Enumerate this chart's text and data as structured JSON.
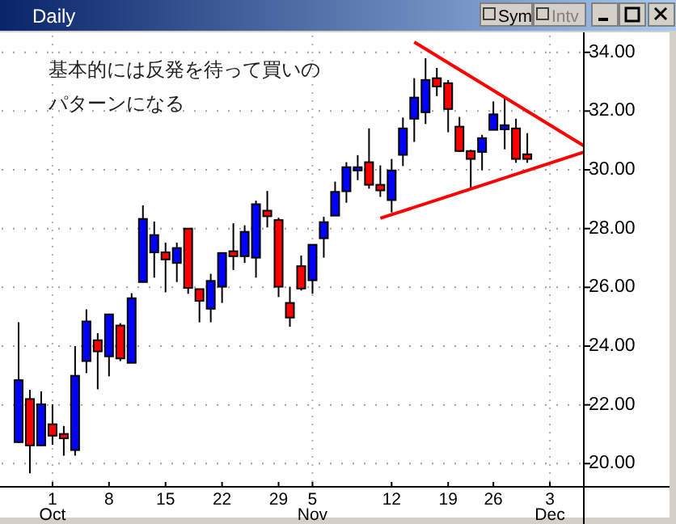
{
  "chart_data": {
    "type": "candlestick",
    "title": "Daily",
    "categories": [
      null,
      null,
      null,
      "1\nOct",
      null,
      null,
      null,
      null,
      "8",
      null,
      null,
      null,
      null,
      "15",
      null,
      null,
      null,
      null,
      "22",
      null,
      null,
      null,
      null,
      "29",
      null,
      null,
      "5\nNov",
      null,
      null,
      null,
      null,
      null,
      null,
      "12",
      null,
      null,
      null,
      null,
      "19",
      null,
      null,
      null,
      "26",
      null,
      null,
      null,
      null,
      "3\nDec",
      null,
      null,
      null
    ],
    "ohlc": [
      [
        20.73,
        24.81,
        20.7,
        22.84
      ],
      [
        22.2,
        22.51,
        19.67,
        20.62
      ],
      [
        20.62,
        22.46,
        20.6,
        22.02
      ],
      [
        21.34,
        22.02,
        20.64,
        20.95
      ],
      [
        21.01,
        21.28,
        20.27,
        20.86
      ],
      [
        20.46,
        24.0,
        20.27,
        22.99
      ],
      [
        23.49,
        25.25,
        23.08,
        24.84
      ],
      [
        24.2,
        24.44,
        22.53,
        23.82
      ],
      [
        23.65,
        25.08,
        22.97,
        25.08
      ],
      [
        24.7,
        24.78,
        23.49,
        23.58
      ],
      [
        23.43,
        25.8,
        23.43,
        25.63
      ],
      [
        26.18,
        28.79,
        26.18,
        28.33
      ],
      [
        27.19,
        28.24,
        26.33,
        27.78
      ],
      [
        27.19,
        27.52,
        25.83,
        26.95
      ],
      [
        26.83,
        27.52,
        26.18,
        27.34
      ],
      [
        28.0,
        28.0,
        25.78,
        25.98
      ],
      [
        25.94,
        25.94,
        24.81,
        25.54
      ],
      [
        25.27,
        26.46,
        24.81,
        26.22
      ],
      [
        26.02,
        27.17,
        25.47,
        27.17
      ],
      [
        27.23,
        28.18,
        26.59,
        27.06
      ],
      [
        27.06,
        28.11,
        26.83,
        27.89
      ],
      [
        27.01,
        28.95,
        26.33,
        28.83
      ],
      [
        28.61,
        29.28,
        28.04,
        28.42
      ],
      [
        28.29,
        28.37,
        25.67,
        26.02
      ],
      [
        25.47,
        26.02,
        24.66,
        24.97
      ],
      [
        26.72,
        27.08,
        25.89,
        25.96
      ],
      [
        26.24,
        27.45,
        25.78,
        27.45
      ],
      [
        27.67,
        28.4,
        27.01,
        28.22
      ],
      [
        28.44,
        29.6,
        28.44,
        29.25
      ],
      [
        29.27,
        30.26,
        28.88,
        30.09
      ],
      [
        29.98,
        30.5,
        29.65,
        30.09
      ],
      [
        30.26,
        31.41,
        29.36,
        29.49
      ],
      [
        29.49,
        30.15,
        29.08,
        29.3
      ],
      [
        28.97,
        30.37,
        28.55,
        29.98
      ],
      [
        30.51,
        31.78,
        30.13,
        31.41
      ],
      [
        31.74,
        33.12,
        30.95,
        32.46
      ],
      [
        31.96,
        33.8,
        31.56,
        33.06
      ],
      [
        33.12,
        33.47,
        32.51,
        32.84
      ],
      [
        32.95,
        33.06,
        31.28,
        32.07
      ],
      [
        31.47,
        31.8,
        30.61,
        30.64
      ],
      [
        30.64,
        30.68,
        29.36,
        30.37
      ],
      [
        30.61,
        31.19,
        29.98,
        31.08
      ],
      [
        31.36,
        32.33,
        31.36,
        31.89
      ],
      [
        31.38,
        32.48,
        30.7,
        31.52
      ],
      [
        31.41,
        31.74,
        30.24,
        30.37
      ],
      [
        30.53,
        31.25,
        30.24,
        30.37
      ],
      null,
      null,
      null,
      null,
      null
    ],
    "colors": [
      "#0000ff",
      "#ff0000",
      "#0000ff",
      "#ff0000",
      "#ff0000",
      "#0000ff",
      "#0000ff",
      "#ff0000",
      "#0000ff",
      "#ff0000",
      "#0000ff",
      "#0000ff",
      "#0000ff",
      "#ff0000",
      "#0000ff",
      "#ff0000",
      "#ff0000",
      "#0000ff",
      "#0000ff",
      "#ff0000",
      "#0000ff",
      "#0000ff",
      "#ff0000",
      "#ff0000",
      "#ff0000",
      "#ff0000",
      "#0000ff",
      "#0000ff",
      "#0000ff",
      "#0000ff",
      "#0000ff",
      "#ff0000",
      "#ff0000",
      "#0000ff",
      "#0000ff",
      "#0000ff",
      "#0000ff",
      "#ff0000",
      "#ff0000",
      "#ff0000",
      "#ff0000",
      "#0000ff",
      "#0000ff",
      "#0000ff",
      "#ff0000",
      "#ff0000",
      null,
      null,
      null,
      null,
      null
    ],
    "series": [
      {
        "type": "line",
        "color": "#ff0000",
        "values": [
          null,
          null,
          null,
          null,
          null,
          null,
          null,
          null,
          null,
          null,
          null,
          null,
          null,
          null,
          null,
          null,
          null,
          null,
          null,
          null,
          null,
          null,
          null,
          null,
          null,
          null,
          null,
          null,
          null,
          null,
          null,
          null,
          null,
          null,
          null,
          34.35,
          null,
          null,
          null,
          null,
          null,
          null,
          null,
          null,
          null,
          null,
          null,
          null,
          null,
          null,
          30.82
        ]
      },
      {
        "type": "line",
        "color": "#ff0000",
        "values": [
          null,
          null,
          null,
          null,
          null,
          null,
          null,
          null,
          null,
          null,
          null,
          null,
          null,
          null,
          null,
          null,
          null,
          null,
          null,
          null,
          null,
          null,
          null,
          null,
          null,
          null,
          null,
          null,
          null,
          null,
          null,
          null,
          28.35,
          null,
          null,
          null,
          null,
          null,
          null,
          null,
          null,
          null,
          null,
          null,
          null,
          null,
          null,
          null,
          null,
          null,
          30.6
        ]
      }
    ],
    "ylim": [
      19.21,
      34.57
    ],
    "yticks": [
      {
        "value": 20,
        "label": "20.00"
      },
      {
        "value": 22,
        "label": "22.00"
      },
      {
        "value": 24,
        "label": "24.00"
      },
      {
        "value": 26,
        "label": "26.00"
      },
      {
        "value": 28,
        "label": "28.00"
      },
      {
        "value": 30,
        "label": "30.00"
      },
      {
        "value": 32,
        "label": "32.00"
      },
      {
        "value": 34,
        "label": "34.00"
      }
    ],
    "grid": "y",
    "ref_lines": [
      {
        "axis": "x",
        "value": "1\nOct",
        "color": "#b0b0b0",
        "line_style": "dotted"
      },
      {
        "axis": "x",
        "value": "5\nNov",
        "color": "#b0b0b0",
        "line_style": "dotted"
      },
      {
        "axis": "x",
        "value": "3\nDec",
        "color": "#b0b0b0",
        "line_style": "dotted"
      }
    ],
    "annotations": [
      "基本的には反発を待って買いの",
      "パターンになる",
      "Sym",
      "Intv"
    ]
  }
}
